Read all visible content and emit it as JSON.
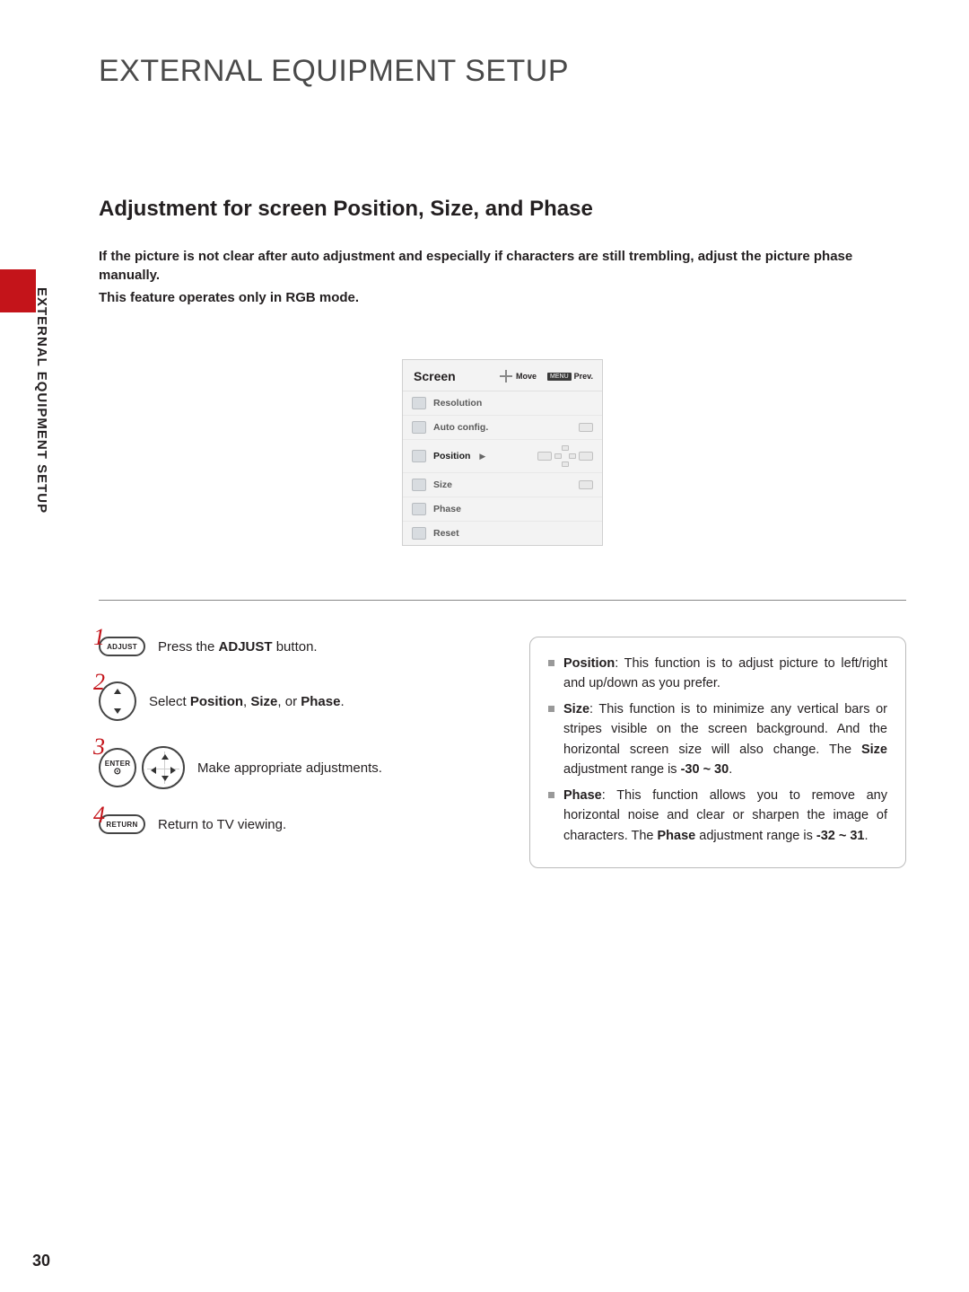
{
  "page_title": "EXTERNAL EQUIPMENT SETUP",
  "side_label": "EXTERNAL EQUIPMENT SETUP",
  "subtitle": "Adjustment for screen Position, Size, and Phase",
  "intro_line1": "If the picture is not clear after auto adjustment and especially if characters are still trembling, adjust the picture phase manually.",
  "intro_line2": "This feature operates only in RGB mode.",
  "osd": {
    "title": "Screen",
    "move_label": "Move",
    "prev_badge": "MENU",
    "prev_label": "Prev.",
    "items": {
      "resolution": "Resolution",
      "autoconfig": "Auto config.",
      "position": "Position",
      "size": "Size",
      "phase": "Phase",
      "reset": "Reset"
    }
  },
  "steps": {
    "s1": {
      "num": "1",
      "btn": "ADJUST",
      "text_pre": "Press the ",
      "text_bold": "ADJUST",
      "text_post": " button."
    },
    "s2": {
      "num": "2",
      "text_pre": "Select ",
      "b1": "Position",
      "c1": ", ",
      "b2": "Size",
      "c2": ", or ",
      "b3": "Phase",
      "post": "."
    },
    "s3": {
      "num": "3",
      "btn": "ENTER",
      "text": "Make appropriate adjustments."
    },
    "s4": {
      "num": "4",
      "btn": "RETURN",
      "text": "Return to TV viewing."
    }
  },
  "info": {
    "i1": {
      "b": "Position",
      "t": ": This function is to adjust picture to left/right and up/down as you prefer."
    },
    "i2": {
      "b1": "Size",
      "t1": ": This function is to minimize any vertical bars or stripes visible on the screen background. And the horizontal screen size will also change. The ",
      "b2": "Size",
      "t2": " adjustment range is ",
      "b3": "-30 ~ 30",
      "t3": "."
    },
    "i3": {
      "b1": "Phase",
      "t1": ": This function allows you to remove any horizontal noise and clear or sharpen the image of characters. The ",
      "b2": "Phase",
      "t2": " adjustment range is ",
      "b3": "-32 ~ 31",
      "t3": "."
    }
  },
  "page_number": "30",
  "colors": {
    "accent": "#c4141a",
    "text": "#231f20"
  }
}
